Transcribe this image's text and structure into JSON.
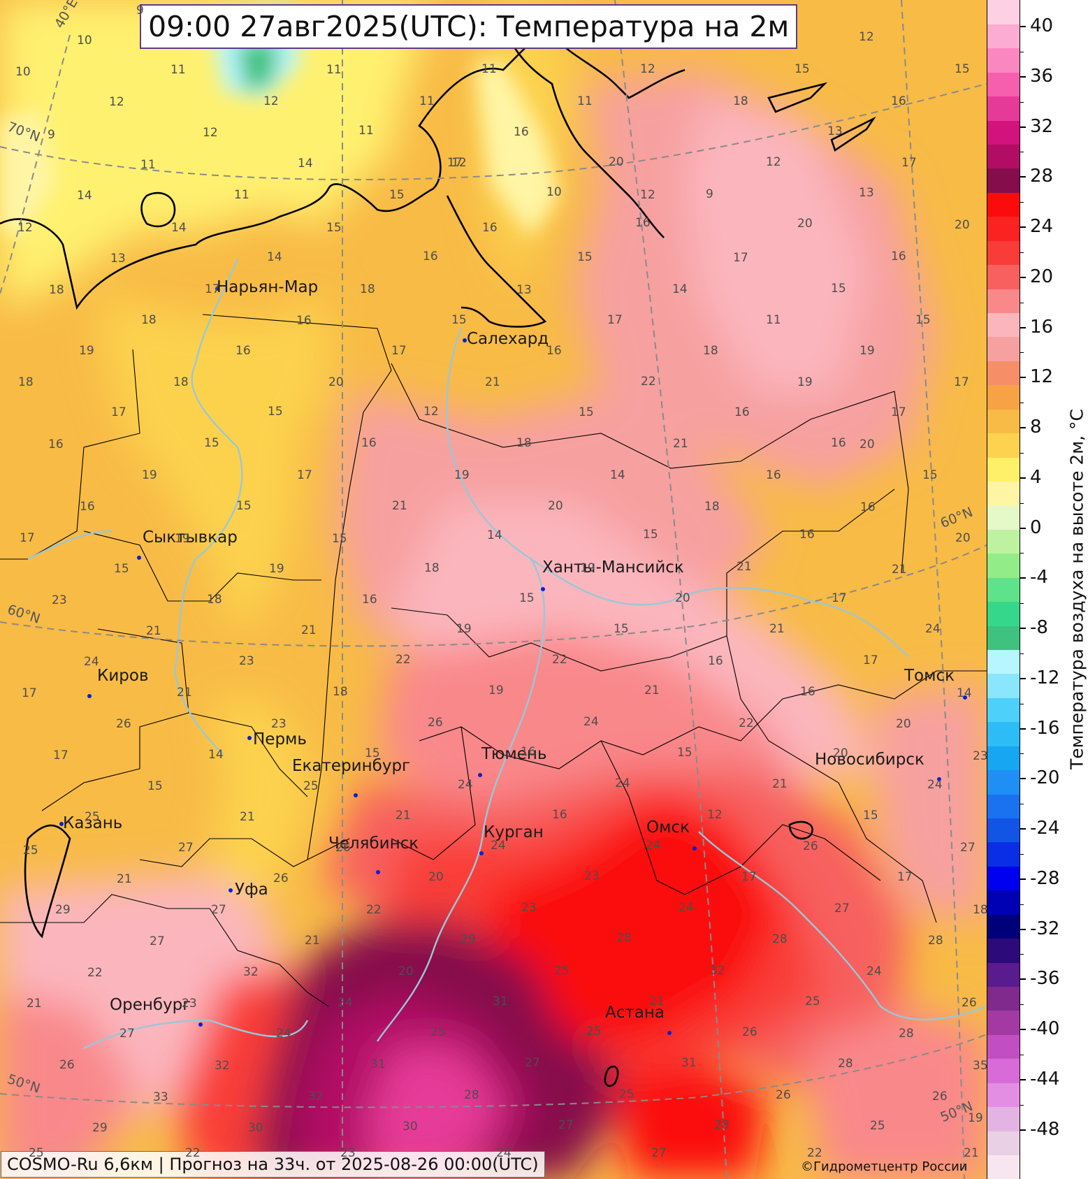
{
  "title": "09:00 27авг2025(UTC): Температура на 2м",
  "footer": "COSMO-Ru 6,6км | Прогноз на  33ч. от 2025-08-26 00:00(UTC)",
  "copyright": "©Гидрометцентр России",
  "colorbar": {
    "label": "Температура воздуха на высоте 2м, °С",
    "tick_labels": [
      "40",
      "36",
      "32",
      "28",
      "24",
      "20",
      "16",
      "12",
      "8",
      "4",
      "0",
      "-4",
      "-8",
      "-12",
      "-16",
      "-20",
      "-24",
      "-28",
      "-32",
      "-36",
      "-40",
      "-44",
      "-48"
    ],
    "colors": [
      "#f7e6f0",
      "#ead0e4",
      "#e3b4e3",
      "#e38ee3",
      "#d96bd9",
      "#c24fc2",
      "#a33aa3",
      "#7f2a8c",
      "#5a1b8f",
      "#2d0a7a",
      "#00007a",
      "#0000b4",
      "#0000f0",
      "#0a2ee6",
      "#1255e6",
      "#1a72f0",
      "#1f8ff5",
      "#17a6f2",
      "#2dbcf5",
      "#4dd0fa",
      "#8ae6fd",
      "#b7f5ff",
      "#3fc27f",
      "#35d88a",
      "#5fe38a",
      "#92ec88",
      "#bff2a0",
      "#e5f8c8",
      "#fff5a5",
      "#fff06a",
      "#fcd24e",
      "#f8bb46",
      "#f6a245",
      "#f68f68",
      "#f7a0a0",
      "#fbb6bd",
      "#f9888b",
      "#f7605e",
      "#f93c38",
      "#fb2222",
      "#fb0b0b",
      "#860d4c",
      "#b20d65",
      "#d2127d",
      "#e63a98",
      "#f55fae",
      "#fb87c0",
      "#fcabd2",
      "#fdd0e4"
    ]
  },
  "grid_labels": [
    "40°E",
    "70°N",
    "60°N",
    "60°N",
    "50°N",
    "50°N"
  ],
  "cities": [
    "Нарьян-Мар",
    "Салехард",
    "Сыктывкар",
    "Ханты-Мансийск",
    "Киров",
    "Пермь",
    "Екатеринбург",
    "Тюмень",
    "Казань",
    "Курган",
    "Челябинск",
    "Омск",
    "Томск",
    "Новосибирск",
    "Уфа",
    "Оренбург",
    "Астана"
  ],
  "temperature_labels": [
    "9",
    "10",
    "10",
    "11",
    "11",
    "12",
    "12",
    "11",
    "12",
    "9",
    "11",
    "11",
    "11",
    "12",
    "12",
    "15",
    "15",
    "11",
    "12",
    "14",
    "16",
    "17",
    "20",
    "18",
    "16",
    "13",
    "12",
    "17",
    "9",
    "13",
    "10",
    "12",
    "14",
    "11",
    "15",
    "12",
    "14",
    "15",
    "16",
    "16",
    "20",
    "20",
    "13",
    "14",
    "16",
    "15",
    "17",
    "16",
    "18",
    "17",
    "18",
    "13",
    "14",
    "15",
    "18",
    "16",
    "15",
    "17",
    "11",
    "15",
    "19",
    "16",
    "17",
    "16",
    "18",
    "19",
    "18",
    "18",
    "20",
    "21",
    "22",
    "19",
    "17",
    "17",
    "15",
    "12",
    "15",
    "16",
    "17",
    "16",
    "15",
    "16",
    "18",
    "21",
    "16",
    "20",
    "19",
    "17",
    "19",
    "14",
    "16",
    "15",
    "16",
    "15",
    "21",
    "20",
    "18",
    "16",
    "17",
    "19",
    "15",
    "14",
    "15",
    "16",
    "20",
    "15",
    "19",
    "18",
    "19",
    "21",
    "21",
    "23",
    "18",
    "16",
    "15",
    "20",
    "17",
    "21",
    "21",
    "19",
    "15",
    "21",
    "24",
    "24",
    "23",
    "22",
    "22",
    "16",
    "17",
    "17",
    "21",
    "18",
    "19",
    "21",
    "16",
    "14",
    "26",
    "23",
    "26",
    "24",
    "22",
    "20",
    "17",
    "14",
    "15",
    "16",
    "15",
    "20",
    "23",
    "15",
    "25",
    "24",
    "24",
    "21",
    "24",
    "25",
    "21",
    "21",
    "16",
    "12",
    "15",
    "25",
    "27",
    "26",
    "24",
    "24",
    "26",
    "27",
    "21",
    "26",
    "20",
    "23",
    "17",
    "17",
    "29",
    "27",
    "22",
    "23",
    "24",
    "27",
    "18",
    "27",
    "21",
    "29",
    "28",
    "28",
    "28",
    "22",
    "32",
    "20",
    "25",
    "32",
    "24",
    "21",
    "23",
    "24",
    "31",
    "21",
    "25",
    "26",
    "27",
    "24",
    "25",
    "25",
    "26",
    "28",
    "26",
    "32",
    "31",
    "27",
    "31",
    "28",
    "35",
    "33",
    "32",
    "28",
    "25",
    "26",
    "26",
    "29",
    "30",
    "30",
    "27",
    "28",
    "25",
    "25",
    "22",
    "23",
    "24",
    "27",
    "22",
    "21",
    "19"
  ]
}
